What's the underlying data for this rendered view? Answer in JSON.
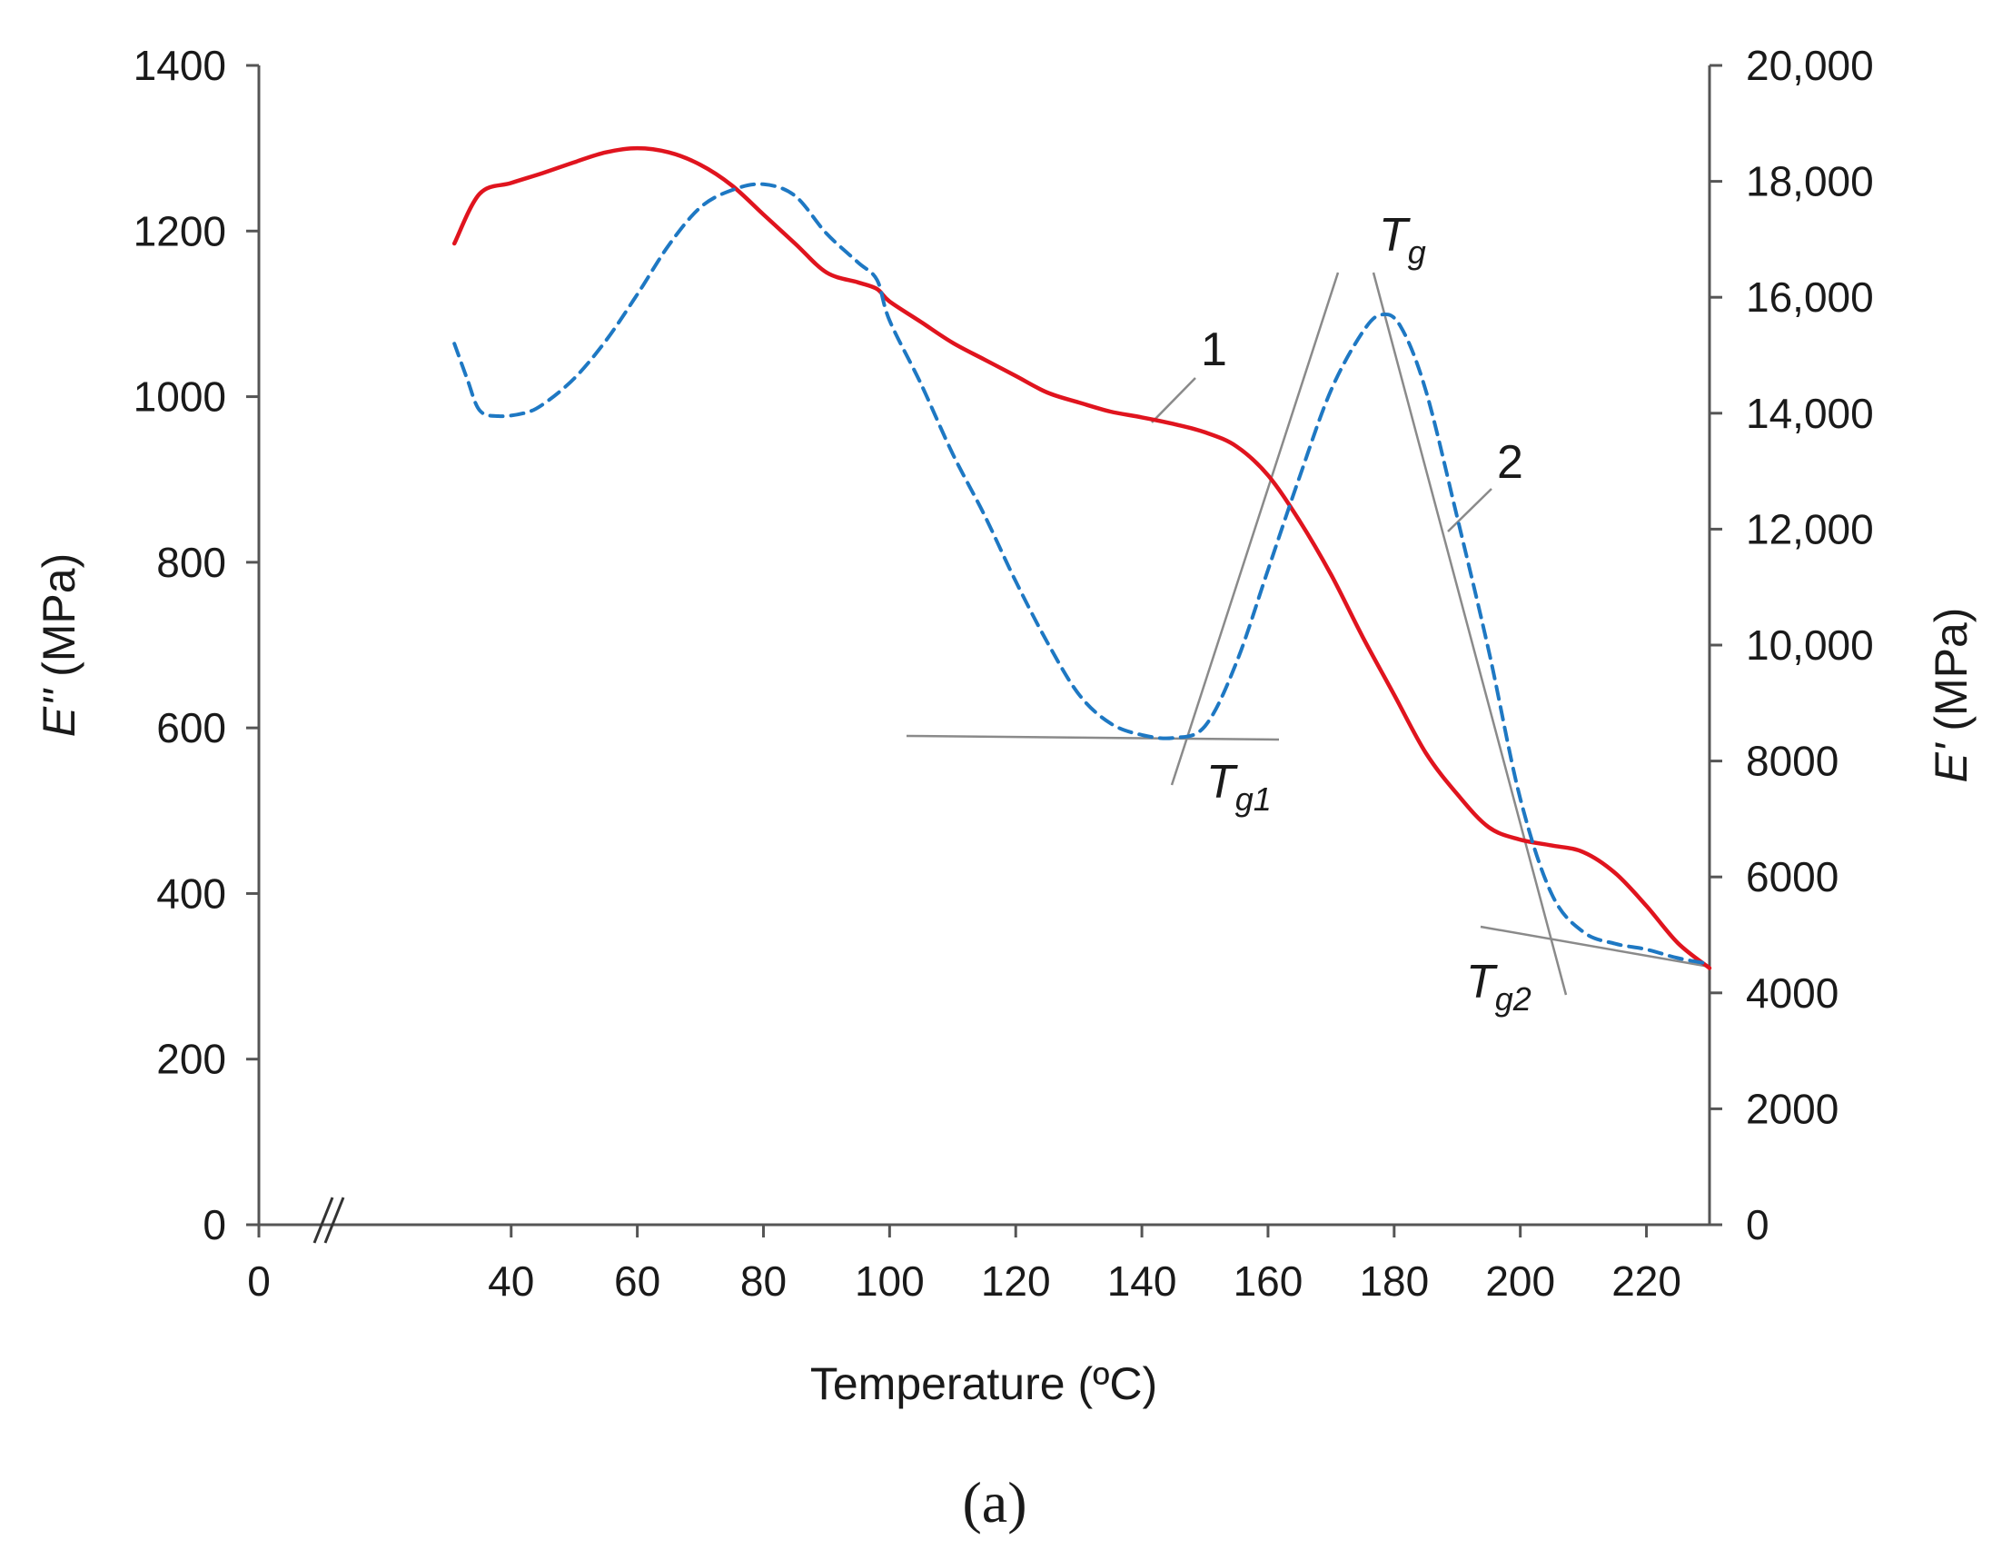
{
  "chart_data": {
    "type": "line",
    "caption": "(a)",
    "xlabel": "Temperature (ºC)",
    "ylabel_left": {
      "symbol": "E''",
      "unit": " (MPa)"
    },
    "ylabel_right": {
      "symbol": "E'",
      "unit": " (MPa)"
    },
    "xlim": [
      0,
      230
    ],
    "x_ticks": [
      0,
      40,
      60,
      80,
      100,
      120,
      140,
      160,
      180,
      200,
      220
    ],
    "ylim_left": [
      0,
      1400
    ],
    "y_ticks_left": [
      0,
      200,
      400,
      600,
      800,
      1000,
      1200,
      1400
    ],
    "ylim_right": [
      0,
      20000
    ],
    "y_ticks_right": [
      {
        "value": 0,
        "label": "0"
      },
      {
        "value": 2000,
        "label": "2000"
      },
      {
        "value": 4000,
        "label": "4000"
      },
      {
        "value": 6000,
        "label": "6000"
      },
      {
        "value": 8000,
        "label": "8000"
      },
      {
        "value": 10000,
        "label": "10,000"
      },
      {
        "value": 12000,
        "label": "12,000"
      },
      {
        "value": 14000,
        "label": "14,000"
      },
      {
        "value": 16000,
        "label": "16,000"
      },
      {
        "value": 18000,
        "label": "18,000"
      },
      {
        "value": 20000,
        "label": "20,000"
      }
    ],
    "axis_break": true,
    "series": [
      {
        "name": "1",
        "axis": "left",
        "style": "solid",
        "color": "#e0141e",
        "x": [
          31,
          35,
          40,
          45,
          50,
          55,
          60,
          65,
          70,
          75,
          80,
          85,
          90,
          95,
          98,
          100,
          105,
          110,
          115,
          120,
          125,
          130,
          135,
          140,
          145,
          150,
          155,
          160,
          165,
          170,
          175,
          180,
          185,
          190,
          195,
          200,
          205,
          210,
          215,
          220,
          225,
          230
        ],
        "y": [
          1185,
          1245,
          1258,
          1270,
          1283,
          1295,
          1300,
          1295,
          1280,
          1255,
          1220,
          1185,
          1150,
          1138,
          1130,
          1115,
          1090,
          1065,
          1045,
          1025,
          1005,
          993,
          982,
          975,
          967,
          957,
          940,
          905,
          850,
          785,
          710,
          640,
          570,
          520,
          480,
          465,
          458,
          450,
          425,
          385,
          340,
          310
        ]
      },
      {
        "name": "2",
        "axis": "right",
        "style": "dashed",
        "color": "#1e78c3",
        "x": [
          31,
          33,
          35,
          38,
          42,
          45,
          50,
          55,
          60,
          65,
          70,
          75,
          80,
          85,
          90,
          95,
          98,
          100,
          105,
          110,
          115,
          120,
          125,
          130,
          135,
          140,
          145,
          150,
          155,
          160,
          165,
          170,
          175,
          178,
          181,
          185,
          190,
          195,
          200,
          205,
          210,
          215,
          220,
          225,
          230
        ],
        "y": [
          15200,
          14600,
          14050,
          13950,
          14000,
          14150,
          14600,
          15250,
          16050,
          16900,
          17550,
          17850,
          17950,
          17750,
          17100,
          16600,
          16300,
          15600,
          14500,
          13300,
          12250,
          11100,
          10050,
          9150,
          8650,
          8450,
          8400,
          8600,
          9700,
          11300,
          12900,
          14400,
          15400,
          15700,
          15500,
          14400,
          12200,
          9900,
          7350,
          5700,
          5050,
          4850,
          4750,
          4600,
          4500
        ]
      }
    ],
    "annotations": [
      {
        "text": "1",
        "type": "series-label",
        "series": "1"
      },
      {
        "text": "2",
        "type": "series-label",
        "series": "2"
      },
      {
        "main": "T",
        "sub": "g",
        "type": "tangent-label"
      },
      {
        "main": "T",
        "sub": "g1",
        "type": "tangent-label"
      },
      {
        "main": "T",
        "sub": "g2",
        "type": "tangent-label"
      }
    ]
  }
}
